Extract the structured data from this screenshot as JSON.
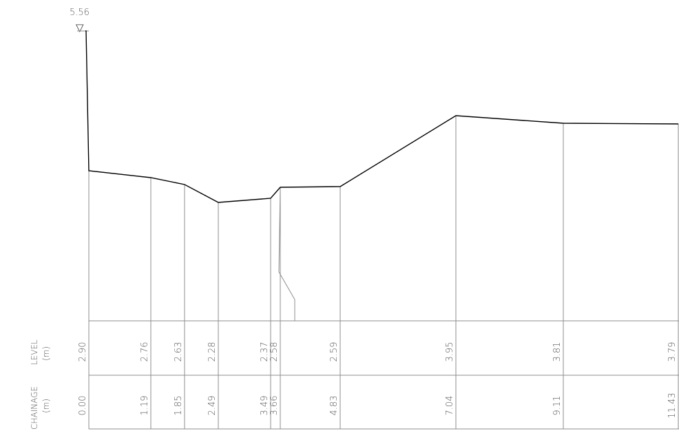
{
  "datum": {
    "value": "5.56",
    "symbol": "▽"
  },
  "rows": {
    "level_header": {
      "line1": "LEVEL",
      "line2": "(m)"
    },
    "chainage_header": {
      "line1": "CHAINAGE",
      "line2": "(m)"
    }
  },
  "chart_data": {
    "type": "line",
    "xlabel": "CHAINAGE (m)",
    "ylabel": "LEVEL (m)",
    "stations": [
      {
        "chainage": "0.00",
        "level": "2.90"
      },
      {
        "chainage": "1.19",
        "level": "2.76"
      },
      {
        "chainage": "1.85",
        "level": "2.63"
      },
      {
        "chainage": "2.49",
        "level": "2.28"
      },
      {
        "chainage": "3.49",
        "level": "2.37"
      },
      {
        "chainage": "3.66",
        "level": "2.58"
      },
      {
        "chainage": "4.83",
        "level": "2.59"
      },
      {
        "chainage": "7.04",
        "level": "3.95"
      },
      {
        "chainage": "9.11",
        "level": "3.81"
      },
      {
        "chainage": "11.43",
        "level": "3.79"
      }
    ],
    "datum_level": 5.56
  }
}
